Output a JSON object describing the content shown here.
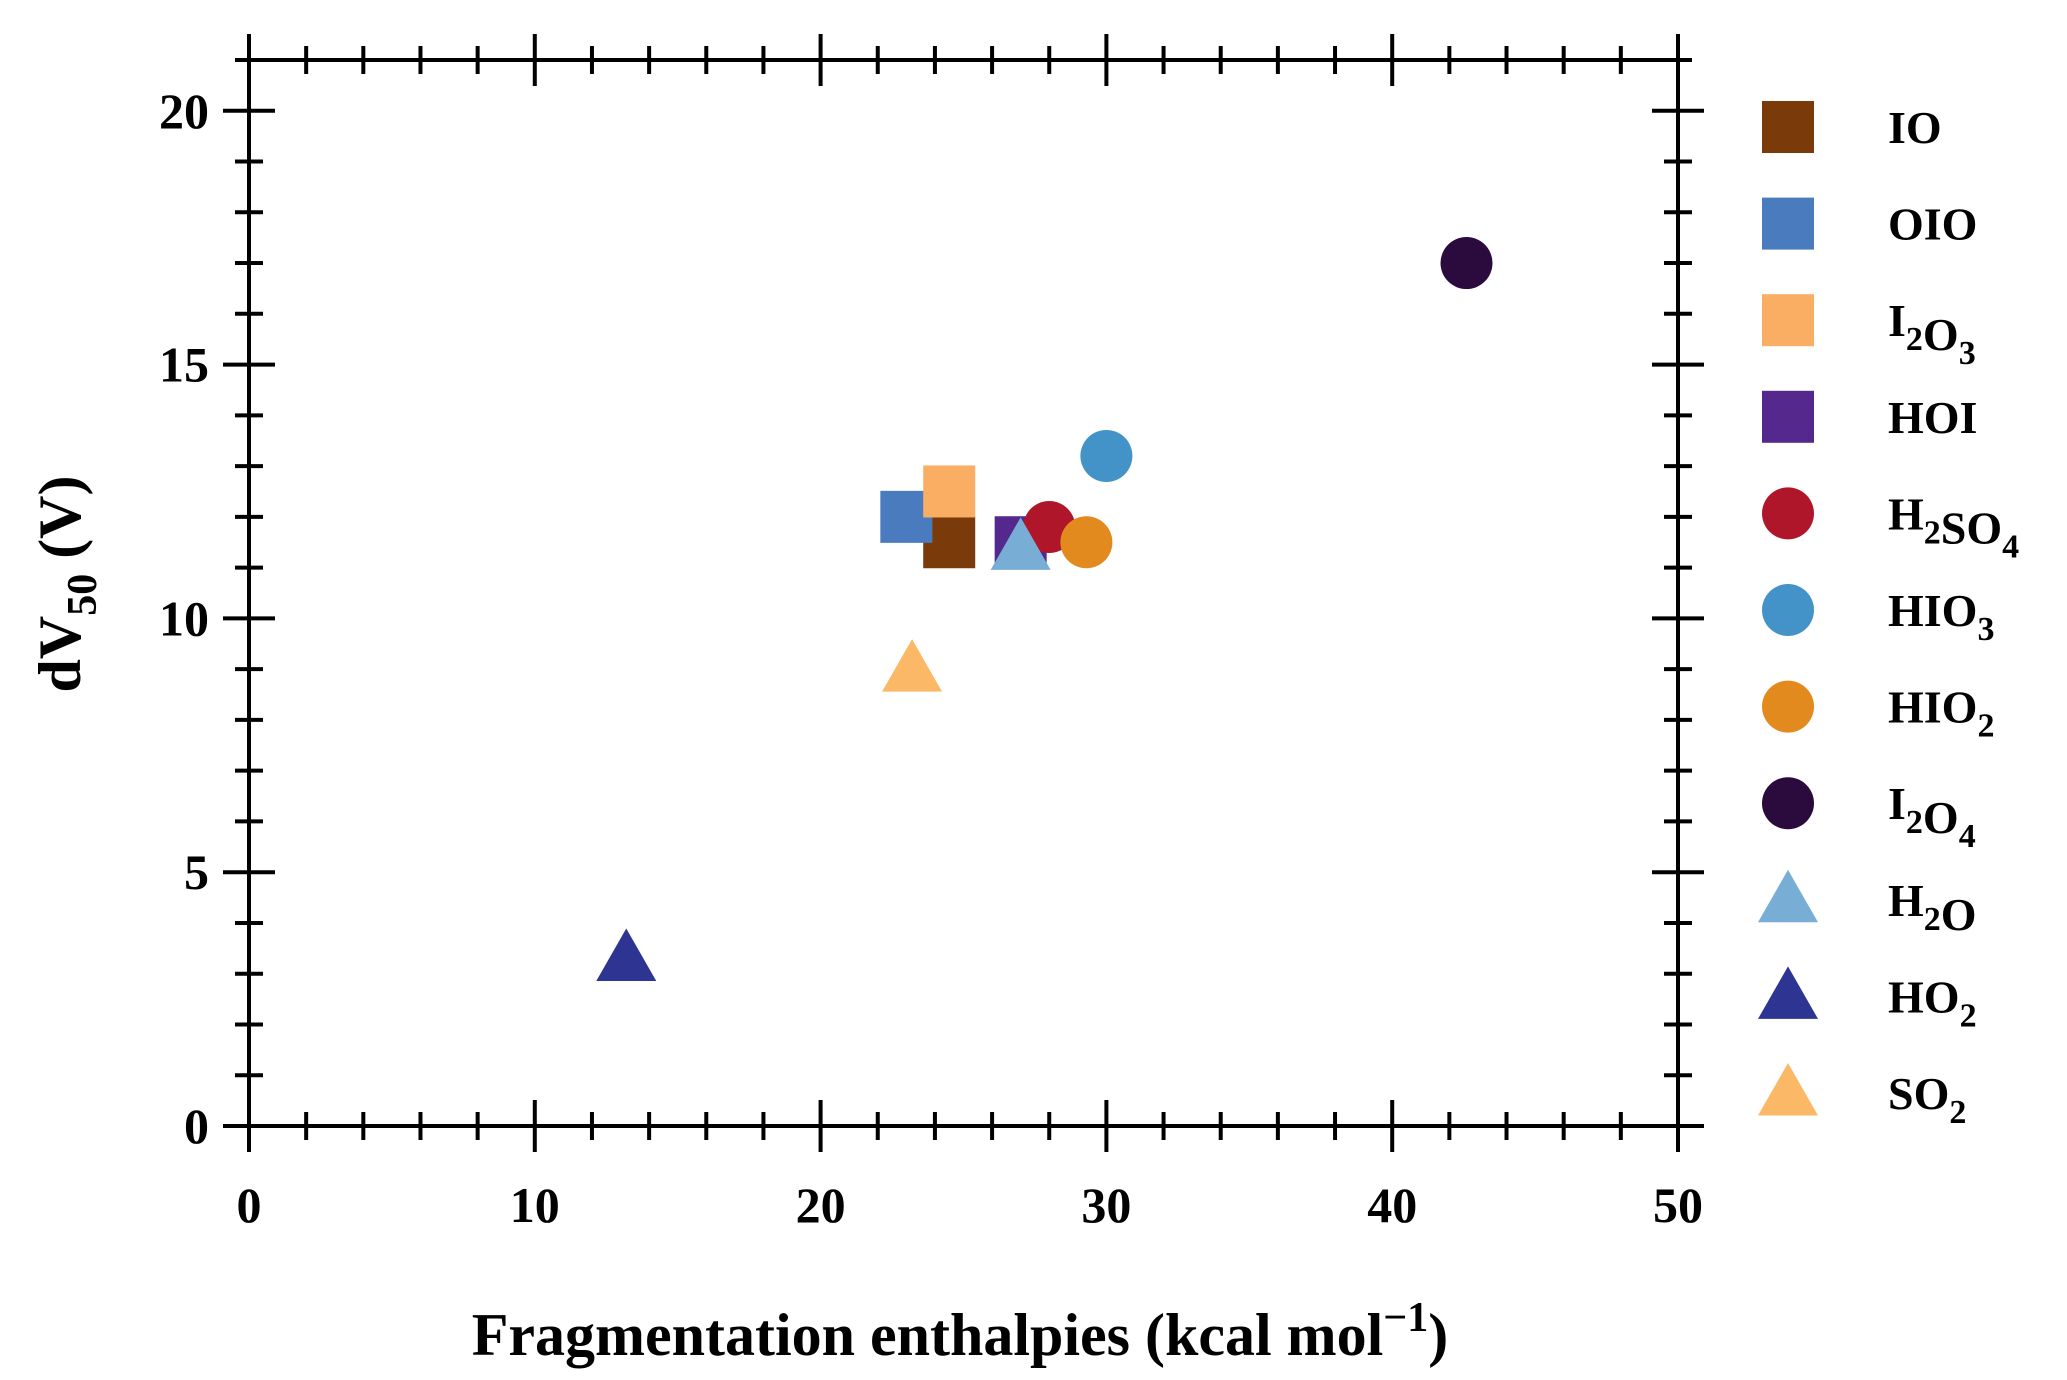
{
  "chart_data": {
    "type": "scatter",
    "xlabel": {
      "main": "Fragmentation enthalpies (kcal mol",
      "sup": "−1",
      "close": ")"
    },
    "ylabel": {
      "main": "dV",
      "sub": "50",
      "rest": " (V)"
    },
    "xlim": [
      0,
      50
    ],
    "ylim": [
      0,
      21
    ],
    "xticks": [
      "0",
      "10",
      "20",
      "30",
      "40",
      "50"
    ],
    "yticks": [
      "0",
      "5",
      "10",
      "15",
      "20"
    ],
    "xtick_values": [
      0,
      10,
      20,
      30,
      40,
      50
    ],
    "ytick_values": [
      0,
      5,
      10,
      15,
      20
    ],
    "grid": false,
    "legend_position": "right, outside plot",
    "series": [
      {
        "name": "IO",
        "label_parts": [
          [
            "IO",
            ""
          ]
        ],
        "marker": "square",
        "color": "#7B3A0A",
        "x": 24.5,
        "y": 11.5
      },
      {
        "name": "OIO",
        "label_parts": [
          [
            "OIO",
            ""
          ]
        ],
        "marker": "square",
        "color": "#4A7BBF",
        "x": 23.0,
        "y": 12.0
      },
      {
        "name": "I2O3",
        "label_parts": [
          [
            "I",
            "2"
          ],
          [
            "O",
            "3"
          ]
        ],
        "marker": "square",
        "color": "#F9AE63",
        "x": 24.5,
        "y": 12.5
      },
      {
        "name": "HOI",
        "label_parts": [
          [
            "HOI",
            ""
          ]
        ],
        "marker": "square",
        "color": "#54288C",
        "x": 27.0,
        "y": 11.5
      },
      {
        "name": "H2SO4",
        "label_parts": [
          [
            "H",
            "2"
          ],
          [
            "SO",
            "4"
          ]
        ],
        "marker": "circle",
        "color": "#B0162A",
        "x": 28.0,
        "y": 11.8
      },
      {
        "name": "HIO3",
        "label_parts": [
          [
            "HIO",
            "3"
          ]
        ],
        "marker": "circle",
        "color": "#4493C8",
        "x": 30.0,
        "y": 13.2
      },
      {
        "name": "HIO2",
        "label_parts": [
          [
            "HIO",
            "2"
          ]
        ],
        "marker": "circle",
        "color": "#E38A1E",
        "x": 29.3,
        "y": 11.5
      },
      {
        "name": "I2O4",
        "label_parts": [
          [
            "I",
            "2"
          ],
          [
            "O",
            "4"
          ]
        ],
        "marker": "circle",
        "color": "#2B0A3D",
        "x": 42.6,
        "y": 17.0
      },
      {
        "name": "H2O",
        "label_parts": [
          [
            "H",
            "2"
          ],
          [
            "O",
            ""
          ]
        ],
        "marker": "triangle",
        "color": "#78AED6",
        "x": 27.0,
        "y": 11.4
      },
      {
        "name": "HO2",
        "label_parts": [
          [
            "HO",
            "2"
          ]
        ],
        "marker": "triangle",
        "color": "#2E3491",
        "x": 13.2,
        "y": 3.3
      },
      {
        "name": "SO2",
        "label_parts": [
          [
            "SO",
            "2"
          ]
        ],
        "marker": "triangle",
        "color": "#FBB867",
        "x": 23.2,
        "y": 9.0
      }
    ]
  }
}
